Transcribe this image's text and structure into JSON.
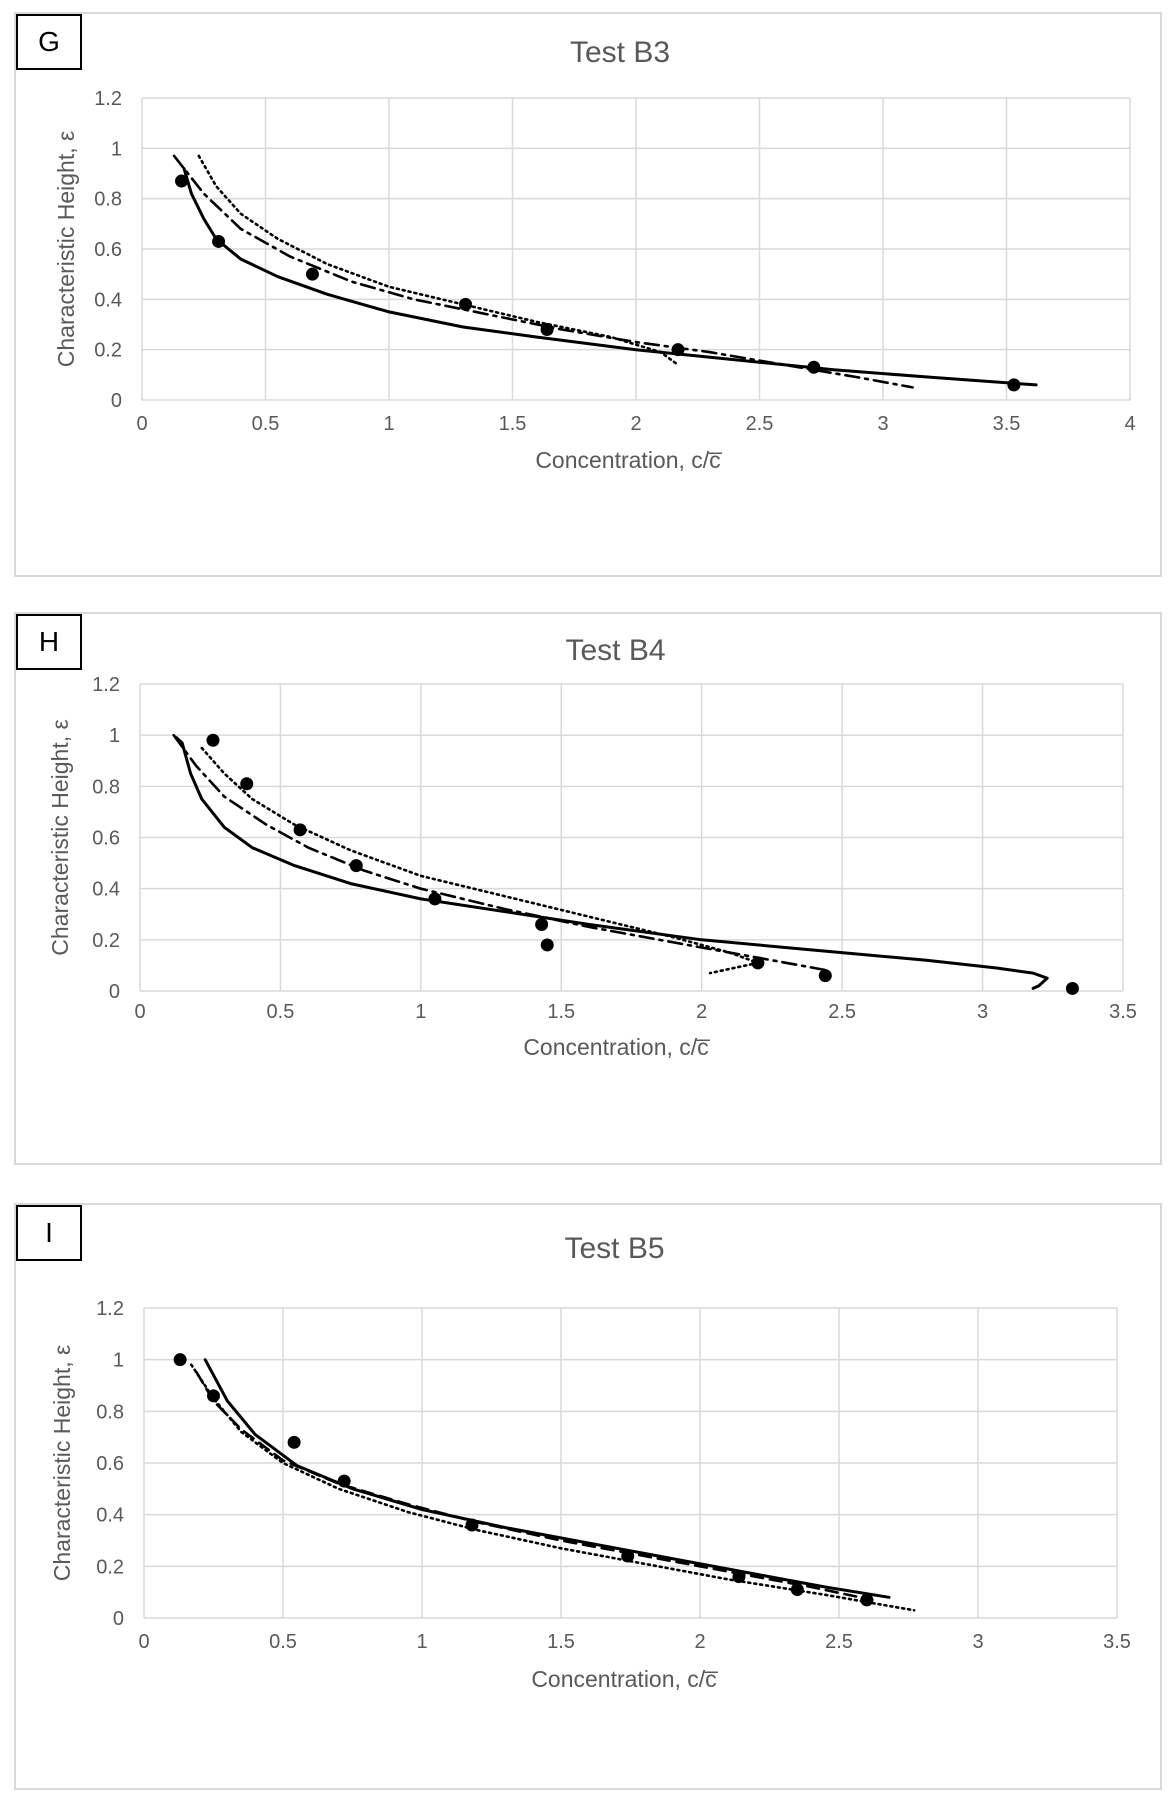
{
  "chart_data": [
    {
      "type": "line",
      "panel_label": "G",
      "title": "Test B3",
      "xlabel": "Concentration, c/c̅",
      "ylabel": "Characteristic Height, ε",
      "xlim": [
        0,
        4
      ],
      "ylim": [
        0,
        1.2
      ],
      "xticks": [
        "0",
        "0.5",
        "1",
        "1.5",
        "2",
        "2.5",
        "3",
        "3.5",
        "4"
      ],
      "yticks": [
        "0",
        "0.2",
        "0.4",
        "0.6",
        "0.8",
        "1",
        "1.2"
      ],
      "grid": true,
      "series": [
        {
          "name": "measured",
          "style": "points",
          "x": [
            0.16,
            0.31,
            0.69,
            1.31,
            1.64,
            2.17,
            2.72,
            3.53
          ],
          "y": [
            0.87,
            0.63,
            0.5,
            0.38,
            0.28,
            0.2,
            0.13,
            0.06
          ]
        },
        {
          "name": "solid",
          "style": "solid",
          "x": [
            0.17,
            0.2,
            0.25,
            0.3,
            0.4,
            0.55,
            0.75,
            1.0,
            1.3,
            1.6,
            2.0,
            2.4,
            2.8,
            3.2,
            3.62
          ],
          "y": [
            0.92,
            0.82,
            0.72,
            0.64,
            0.56,
            0.49,
            0.42,
            0.35,
            0.29,
            0.25,
            0.2,
            0.16,
            0.12,
            0.09,
            0.06
          ]
        },
        {
          "name": "dash-dot",
          "style": "dashdot",
          "x": [
            0.13,
            0.25,
            0.4,
            0.6,
            0.85,
            1.1,
            1.4,
            1.7,
            2.0,
            2.3,
            2.6,
            2.9,
            3.12
          ],
          "y": [
            0.97,
            0.82,
            0.68,
            0.57,
            0.47,
            0.4,
            0.34,
            0.28,
            0.23,
            0.19,
            0.14,
            0.09,
            0.05
          ]
        },
        {
          "name": "dotted",
          "style": "dotted",
          "x": [
            0.23,
            0.3,
            0.4,
            0.55,
            0.75,
            1.0,
            1.3,
            1.6,
            1.9,
            2.1,
            2.17
          ],
          "y": [
            0.97,
            0.85,
            0.74,
            0.64,
            0.54,
            0.45,
            0.38,
            0.31,
            0.25,
            0.19,
            0.14
          ]
        }
      ]
    },
    {
      "type": "line",
      "panel_label": "H",
      "title": "Test B4",
      "xlabel": "Concentration, c/c̅",
      "ylabel": "Characteristic Height, ε",
      "xlim": [
        0,
        3.5
      ],
      "ylim": [
        0,
        1.2
      ],
      "xticks": [
        "0",
        "0.5",
        "1",
        "1.5",
        "2",
        "2.5",
        "3",
        "3.5"
      ],
      "yticks": [
        "0",
        "0.2",
        "0.4",
        "0.6",
        "0.8",
        "1",
        "1.2"
      ],
      "grid": true,
      "series": [
        {
          "name": "measured",
          "style": "points",
          "x": [
            0.26,
            0.38,
            0.57,
            0.77,
            1.05,
            1.43,
            1.45,
            2.2,
            2.44,
            3.32
          ],
          "y": [
            0.98,
            0.81,
            0.63,
            0.49,
            0.36,
            0.26,
            0.18,
            0.11,
            0.06,
            0.01
          ]
        },
        {
          "name": "solid",
          "style": "solid",
          "x": [
            0.13,
            0.15,
            0.18,
            0.22,
            0.3,
            0.4,
            0.55,
            0.75,
            1.0,
            1.3,
            1.6,
            2.0,
            2.4,
            2.8,
            3.05,
            3.18,
            3.23,
            3.2,
            3.18
          ],
          "y": [
            0.99,
            0.97,
            0.85,
            0.75,
            0.64,
            0.56,
            0.49,
            0.42,
            0.36,
            0.31,
            0.26,
            0.2,
            0.16,
            0.12,
            0.09,
            0.07,
            0.05,
            0.02,
            0.01
          ]
        },
        {
          "name": "dash-dot",
          "style": "dashdot",
          "x": [
            0.12,
            0.2,
            0.3,
            0.45,
            0.6,
            0.8,
            1.0,
            1.3,
            1.6,
            1.9,
            2.2,
            2.45
          ],
          "y": [
            1.0,
            0.88,
            0.76,
            0.65,
            0.56,
            0.47,
            0.4,
            0.32,
            0.25,
            0.19,
            0.13,
            0.08
          ]
        },
        {
          "name": "dotted",
          "style": "dotted",
          "x": [
            0.22,
            0.3,
            0.4,
            0.55,
            0.75,
            1.0,
            1.3,
            1.6,
            1.9,
            2.1,
            2.2,
            2.03
          ],
          "y": [
            0.95,
            0.85,
            0.75,
            0.65,
            0.55,
            0.45,
            0.37,
            0.29,
            0.21,
            0.15,
            0.11,
            0.07
          ]
        }
      ]
    },
    {
      "type": "line",
      "panel_label": "I",
      "title": "Test B5",
      "xlabel": "Concentration, c/c̅",
      "ylabel": "Characteristic Height, ε",
      "xlim": [
        0,
        3.5
      ],
      "ylim": [
        0,
        1.2
      ],
      "xticks": [
        "0",
        "0.5",
        "1",
        "1.5",
        "2",
        "2.5",
        "3",
        "3.5"
      ],
      "yticks": [
        "0",
        "0.2",
        "0.4",
        "0.6",
        "0.8",
        "1",
        "1.2"
      ],
      "grid": true,
      "series": [
        {
          "name": "measured",
          "style": "points",
          "x": [
            0.13,
            0.25,
            0.54,
            0.72,
            1.18,
            1.74,
            2.14,
            2.35,
            2.6
          ],
          "y": [
            1.0,
            0.86,
            0.68,
            0.53,
            0.36,
            0.24,
            0.16,
            0.11,
            0.07
          ]
        },
        {
          "name": "solid",
          "style": "solid",
          "x": [
            0.22,
            0.3,
            0.4,
            0.55,
            0.75,
            1.0,
            1.3,
            1.6,
            1.9,
            2.2,
            2.45,
            2.68
          ],
          "y": [
            1.0,
            0.84,
            0.71,
            0.59,
            0.5,
            0.42,
            0.35,
            0.29,
            0.23,
            0.17,
            0.12,
            0.08
          ]
        },
        {
          "name": "dashed",
          "style": "dashed",
          "x": [
            0.19,
            0.25,
            0.35,
            0.5,
            0.7,
            0.95,
            1.2,
            1.5,
            1.8,
            2.1,
            2.4,
            2.62
          ],
          "y": [
            0.95,
            0.84,
            0.73,
            0.61,
            0.52,
            0.44,
            0.37,
            0.3,
            0.24,
            0.18,
            0.12,
            0.07
          ]
        },
        {
          "name": "dotted",
          "style": "dotted",
          "x": [
            0.17,
            0.25,
            0.35,
            0.5,
            0.7,
            0.95,
            1.2,
            1.5,
            1.8,
            2.1,
            2.45,
            2.77
          ],
          "y": [
            0.98,
            0.85,
            0.72,
            0.6,
            0.5,
            0.41,
            0.34,
            0.27,
            0.21,
            0.15,
            0.09,
            0.03
          ]
        }
      ]
    }
  ]
}
